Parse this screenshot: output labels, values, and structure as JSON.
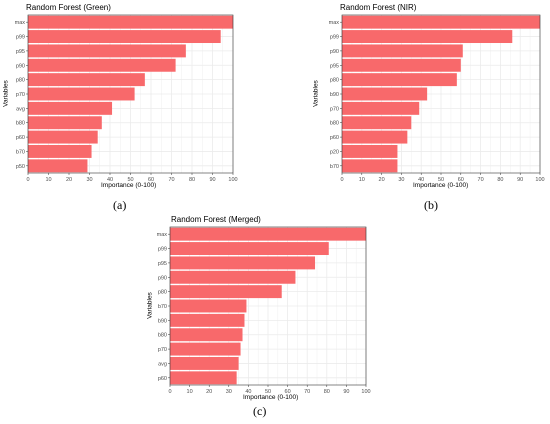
{
  "colors": {
    "bar": "#F8696B",
    "grid": "#EBEBEB",
    "border": "#333333"
  },
  "captions": [
    "(a)",
    "(b)",
    "(c)"
  ],
  "chart_data": [
    {
      "type": "bar",
      "orientation": "horizontal",
      "title": "Random Forest (Green)",
      "xlabel": "Importance (0-100)",
      "ylabel": "Variables",
      "xlim": [
        0,
        100
      ],
      "xticks": [
        0,
        10,
        20,
        30,
        40,
        50,
        60,
        70,
        80,
        90,
        100
      ],
      "grid": true,
      "categories": [
        "max",
        "p99",
        "p95",
        "p90",
        "p80",
        "p70",
        "avg",
        "b80",
        "p60",
        "b70",
        "p50"
      ],
      "values": [
        100,
        94,
        77,
        72,
        57,
        52,
        41,
        36,
        34,
        31,
        29
      ]
    },
    {
      "type": "bar",
      "orientation": "horizontal",
      "title": "Random Forest (NIR)",
      "xlabel": "Importance (0-100)",
      "ylabel": "Variables",
      "xlim": [
        0,
        100
      ],
      "xticks": [
        0,
        10,
        20,
        30,
        40,
        50,
        60,
        70,
        80,
        90,
        100
      ],
      "grid": true,
      "categories": [
        "max",
        "p99",
        "p90",
        "p95",
        "p80",
        "b90",
        "p70",
        "b80",
        "p60",
        "p20",
        "b70"
      ],
      "values": [
        100,
        86,
        61,
        60,
        58,
        43,
        39,
        35,
        33,
        28,
        28
      ]
    },
    {
      "type": "bar",
      "orientation": "horizontal",
      "title": "Random Forest (Merged)",
      "xlabel": "Importance (0-100)",
      "ylabel": "Variables",
      "xlim": [
        0,
        100
      ],
      "xticks": [
        0,
        10,
        20,
        30,
        40,
        50,
        60,
        70,
        80,
        90,
        100
      ],
      "grid": true,
      "categories": [
        "max",
        "p99",
        "p95",
        "p90",
        "p80",
        "b70",
        "b90",
        "b80",
        "p70",
        "avg",
        "p60"
      ],
      "values": [
        100,
        81,
        74,
        64,
        57,
        39,
        38,
        37,
        36,
        35,
        34
      ]
    }
  ]
}
